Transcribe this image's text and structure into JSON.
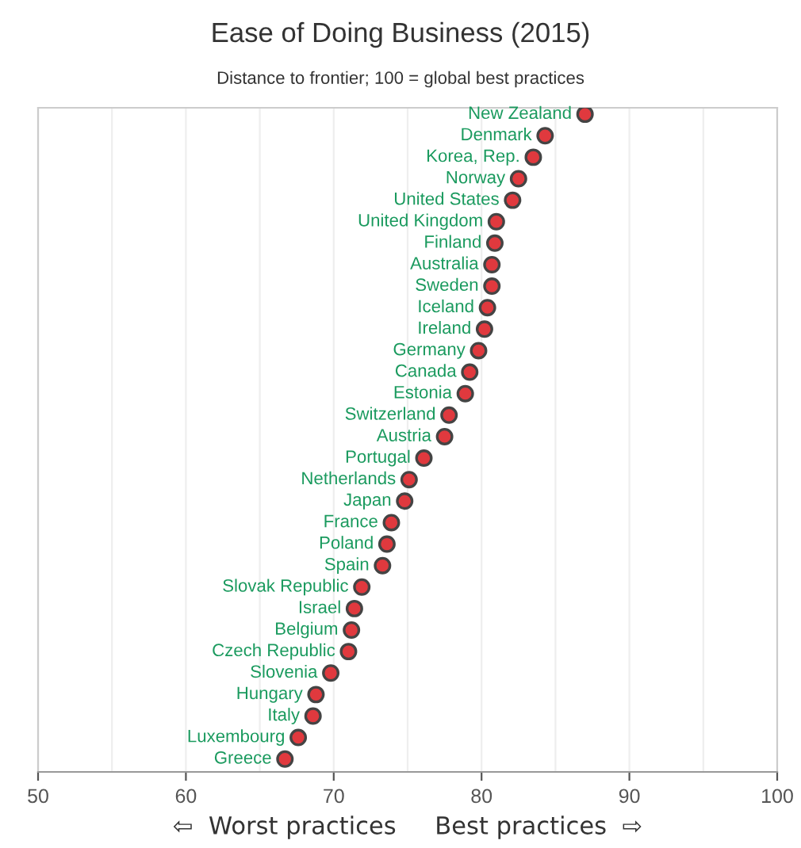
{
  "chart_data": {
    "type": "scatter",
    "title": "Ease of Doing Business (2015)",
    "subtitle": "Distance to frontier; 100 = global best practices",
    "xlabel": "⇦  Worst practices     Best practices  ⇨",
    "categories": [
      "New Zealand",
      "Denmark",
      "Korea, Rep.",
      "Norway",
      "United States",
      "United Kingdom",
      "Finland",
      "Australia",
      "Sweden",
      "Iceland",
      "Ireland",
      "Germany",
      "Canada",
      "Estonia",
      "Switzerland",
      "Austria",
      "Portugal",
      "Netherlands",
      "Japan",
      "France",
      "Poland",
      "Spain",
      "Slovak Republic",
      "Israel",
      "Belgium",
      "Czech Republic",
      "Slovenia",
      "Hungary",
      "Italy",
      "Luxembourg",
      "Greece"
    ],
    "orientation": "horizontal",
    "series": [
      {
        "color": "#e0393e",
        "values": [
          87.0,
          84.3,
          83.5,
          82.5,
          82.1,
          81.0,
          80.9,
          80.7,
          80.7,
          80.4,
          80.2,
          79.8,
          79.2,
          78.9,
          77.8,
          77.5,
          76.1,
          75.1,
          74.8,
          73.9,
          73.6,
          73.3,
          71.9,
          71.4,
          71.2,
          71.0,
          69.8,
          68.8,
          68.6,
          67.6,
          66.7
        ]
      }
    ],
    "xlim": [
      50,
      100
    ],
    "xticks": [
      50,
      {
        "value": 55,
        "label": null
      },
      60,
      {
        "value": 65,
        "label": null
      },
      70,
      {
        "value": 75,
        "label": null
      },
      80,
      {
        "value": 85,
        "label": null
      },
      90,
      {
        "value": 95,
        "label": null
      },
      100
    ],
    "tick_labels": "x",
    "grid": "x",
    "marker": "circle"
  }
}
